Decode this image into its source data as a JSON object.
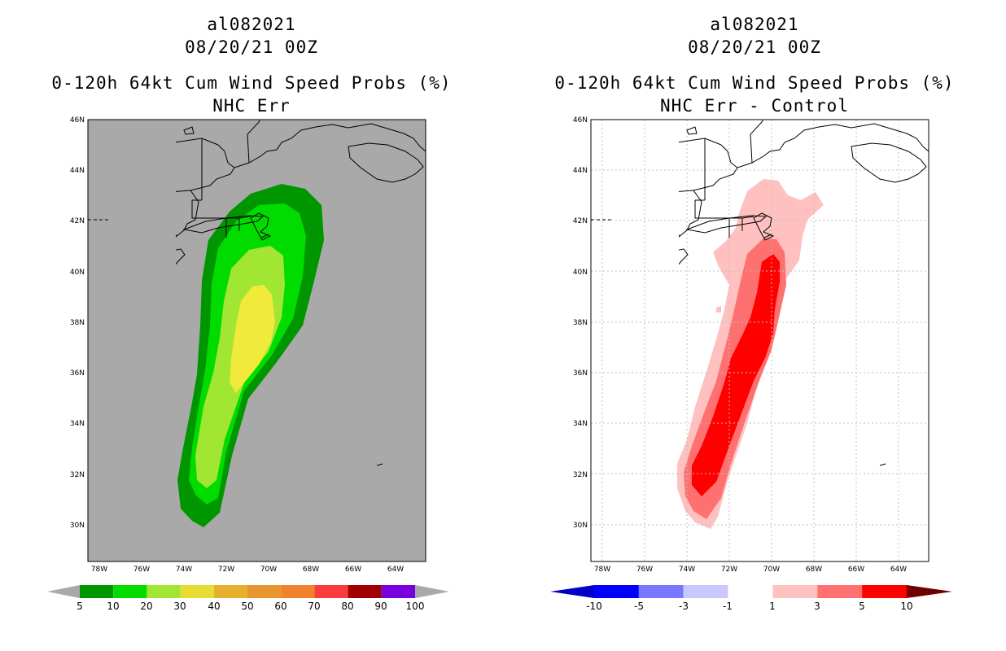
{
  "colors": {
    "left_background": "#a9a9a9",
    "right_background": "#ffffff",
    "coast": "#000000"
  },
  "left_panel": {
    "storm_id": "al082021",
    "datetime": "08/20/21 00Z",
    "title": "0-120h 64kt Cum Wind Speed Probs (%)",
    "subtitle": "NHC Err",
    "lat_labels": [
      "46N",
      "44N",
      "42N",
      "40N",
      "38N",
      "36N",
      "34N",
      "32N",
      "30N"
    ],
    "lon_labels": [
      "78W",
      "76W",
      "74W",
      "72W",
      "70W",
      "68W",
      "66W",
      "64W"
    ],
    "colorbar": {
      "labels": [
        "5",
        "10",
        "20",
        "30",
        "40",
        "50",
        "60",
        "70",
        "80",
        "90",
        "100"
      ],
      "colors": [
        "#009600",
        "#00dc00",
        "#a0e632",
        "#e6dc32",
        "#e6af2d",
        "#e6962d",
        "#f0822d",
        "#fa3c3c",
        "#a00000",
        "#7800dc"
      ]
    }
  },
  "right_panel": {
    "storm_id": "al082021",
    "datetime": "08/20/21 00Z",
    "title": "0-120h 64kt Cum Wind Speed Probs (%)",
    "subtitle": "NHC Err - Control",
    "lat_labels": [
      "46N",
      "44N",
      "42N",
      "40N",
      "38N",
      "36N",
      "34N",
      "32N",
      "30N"
    ],
    "lon_labels": [
      "78W",
      "76W",
      "74W",
      "72W",
      "70W",
      "68W",
      "66W",
      "64W"
    ],
    "colorbar": {
      "labels": [
        "-10",
        "-5",
        "-3",
        "-1",
        "1",
        "3",
        "5",
        "10"
      ],
      "colors": [
        "#0000c8",
        "#0000ff",
        "#7878ff",
        "#c8c8ff",
        "#ffffff",
        "#ffc0c0",
        "#ff7070",
        "#ff0000",
        "#700000"
      ]
    }
  }
}
